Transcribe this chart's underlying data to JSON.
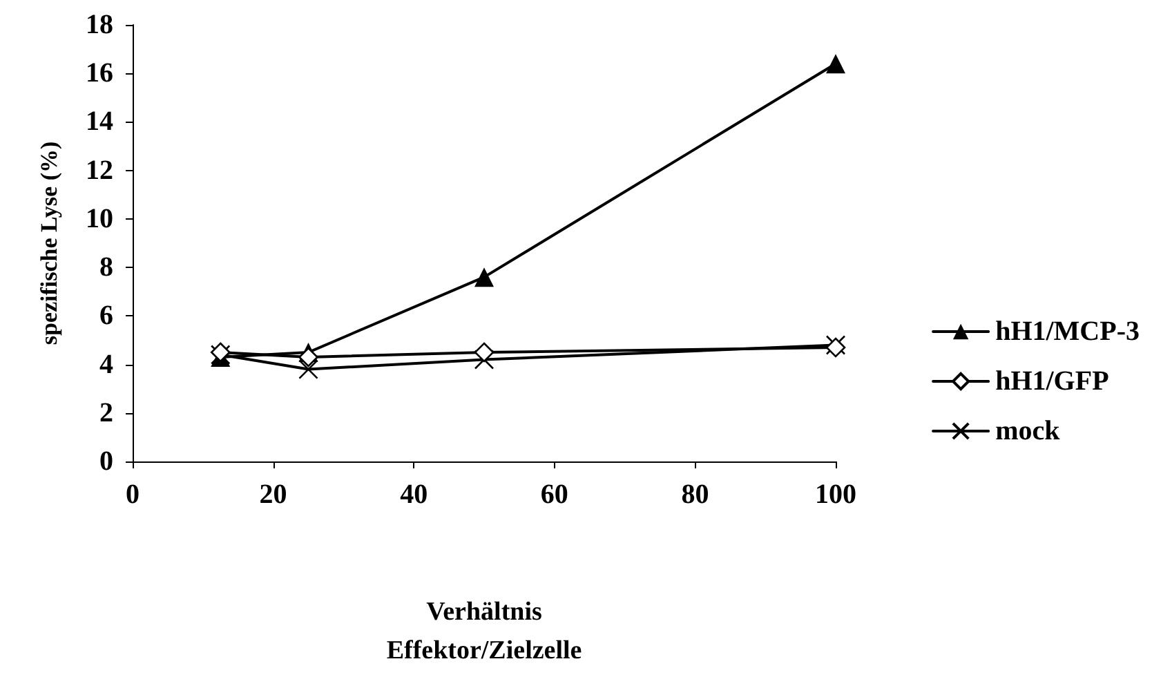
{
  "chart_data": {
    "type": "line",
    "xlabel": "Verhältnis\nEffektor/Zielzelle",
    "ylabel": "spezifische Lyse (%)",
    "x": [
      12.5,
      25,
      50,
      100
    ],
    "series": [
      {
        "name": "hH1/MCP-3",
        "color": "#000000",
        "marker": "triangle",
        "values": [
          4.3,
          4.5,
          7.6,
          16.4
        ]
      },
      {
        "name": "hH1/GFP",
        "color": "#000000",
        "marker": "diamond",
        "values": [
          4.5,
          4.3,
          4.5,
          4.7
        ]
      },
      {
        "name": "mock",
        "color": "#000000",
        "marker": "cross",
        "values": [
          4.4,
          3.8,
          4.2,
          4.8
        ]
      }
    ],
    "xlim": [
      0,
      100
    ],
    "xticks": [
      0,
      20,
      40,
      60,
      80,
      100
    ],
    "ylim": [
      0,
      18
    ],
    "yticks": [
      0,
      2,
      4,
      6,
      8,
      10,
      12,
      14,
      16,
      18
    ],
    "grid": false,
    "legend": "right",
    "line_style": "solid"
  }
}
